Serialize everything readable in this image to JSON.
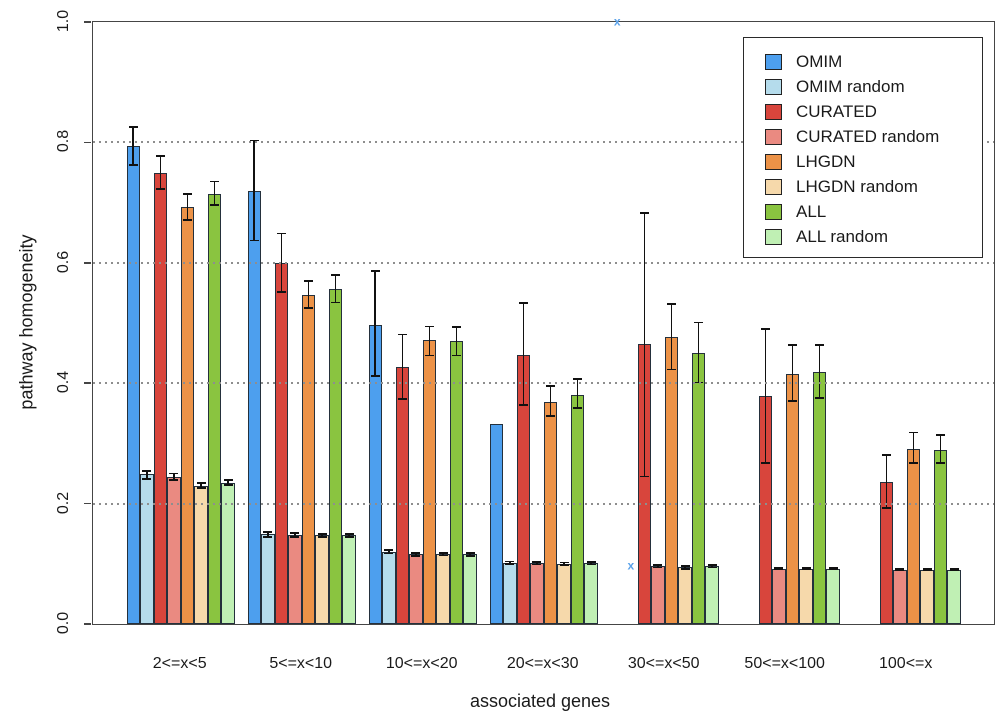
{
  "figure": {
    "xlabel": "associated genes",
    "ylabel": "pathway homogeneity",
    "marker_glyph": "x",
    "marker_color": "#5aa2ea"
  },
  "chart_data": {
    "type": "bar",
    "title": "",
    "xlabel": "associated genes",
    "ylabel": "pathway homogeneity",
    "ylim": [
      0.0,
      1.0
    ],
    "y_tick_labels": [
      "0.0",
      "0.2",
      "0.4",
      "0.6",
      "0.8",
      "1.0"
    ],
    "grid_values": [
      0.2,
      0.4,
      0.6,
      0.8
    ],
    "grid_style": "dotted-horizontal-gray",
    "legend_position": "top-right",
    "error_bars": true,
    "categories": [
      "2<=x<5",
      "5<=x<10",
      "10<=x<20",
      "20<=x<30",
      "30<=x<50",
      "50<=x<100",
      "100<=x"
    ],
    "series": [
      {
        "name": "OMIM",
        "color": "#4d9fee",
        "values": [
          0.794,
          0.719,
          0.497,
          0.333,
          null,
          null,
          null
        ],
        "err_lo": [
          0.762,
          0.637,
          0.412,
          null,
          null,
          null,
          null
        ],
        "err_hi": [
          0.826,
          0.803,
          0.586,
          null,
          null,
          null,
          null
        ]
      },
      {
        "name": "OMIM random",
        "color": "#b5dcec",
        "values": [
          0.249,
          0.149,
          0.12,
          0.102,
          null,
          null,
          null
        ],
        "err_lo": [
          0.241,
          0.145,
          0.117,
          0.1,
          null,
          null,
          null
        ],
        "err_hi": [
          0.254,
          0.153,
          0.123,
          0.104,
          null,
          null,
          null
        ]
      },
      {
        "name": "CURATED",
        "color": "#d8453c",
        "values": [
          0.75,
          0.6,
          0.427,
          0.447,
          0.465,
          0.378,
          0.236
        ],
        "err_lo": [
          0.723,
          0.552,
          0.374,
          0.364,
          0.245,
          0.268,
          0.193
        ],
        "err_hi": [
          0.777,
          0.649,
          0.481,
          0.533,
          0.683,
          0.49,
          0.281
        ]
      },
      {
        "name": "CURATED random",
        "color": "#ea8a81",
        "values": [
          0.245,
          0.148,
          0.116,
          0.101,
          0.096,
          0.092,
          0.09
        ],
        "err_lo": [
          0.239,
          0.145,
          0.113,
          0.099,
          0.094,
          0.091,
          0.089
        ],
        "err_hi": [
          0.25,
          0.151,
          0.118,
          0.103,
          0.098,
          0.094,
          0.091
        ]
      },
      {
        "name": "LHGDN",
        "color": "#ec9247",
        "values": [
          0.692,
          0.547,
          0.471,
          0.369,
          0.476,
          0.416,
          0.291
        ],
        "err_lo": [
          0.671,
          0.525,
          0.446,
          0.346,
          0.423,
          0.371,
          0.268
        ],
        "err_hi": [
          0.714,
          0.57,
          0.494,
          0.395,
          0.532,
          0.464,
          0.318
        ]
      },
      {
        "name": "LHGDN random",
        "color": "#f6d9ab",
        "values": [
          0.23,
          0.148,
          0.116,
          0.1,
          0.094,
          0.092,
          0.09
        ],
        "err_lo": [
          0.226,
          0.145,
          0.114,
          0.098,
          0.092,
          0.091,
          0.089
        ],
        "err_hi": [
          0.234,
          0.15,
          0.118,
          0.102,
          0.096,
          0.094,
          0.091
        ]
      },
      {
        "name": "ALL",
        "color": "#8ac440",
        "values": [
          0.714,
          0.556,
          0.47,
          0.381,
          0.45,
          0.418,
          0.289
        ],
        "err_lo": [
          0.696,
          0.534,
          0.446,
          0.359,
          0.401,
          0.375,
          0.267
        ],
        "err_hi": [
          0.735,
          0.58,
          0.493,
          0.407,
          0.501,
          0.463,
          0.314
        ]
      },
      {
        "name": "ALL random",
        "color": "#c0f0b4",
        "values": [
          0.235,
          0.148,
          0.116,
          0.101,
          0.096,
          0.092,
          0.09
        ],
        "err_lo": [
          0.231,
          0.145,
          0.113,
          0.099,
          0.094,
          0.091,
          0.089
        ],
        "err_hi": [
          0.239,
          0.15,
          0.118,
          0.103,
          0.098,
          0.094,
          0.091
        ]
      }
    ],
    "point_markers": [
      {
        "series": "OMIM",
        "series_index": 0,
        "category": "30<=x<50",
        "category_index": 4,
        "value": 1.0,
        "glyph": "x"
      },
      {
        "series": "OMIM random",
        "series_index": 1,
        "category": "30<=x<50",
        "category_index": 4,
        "value": 0.097,
        "glyph": "x"
      }
    ]
  }
}
